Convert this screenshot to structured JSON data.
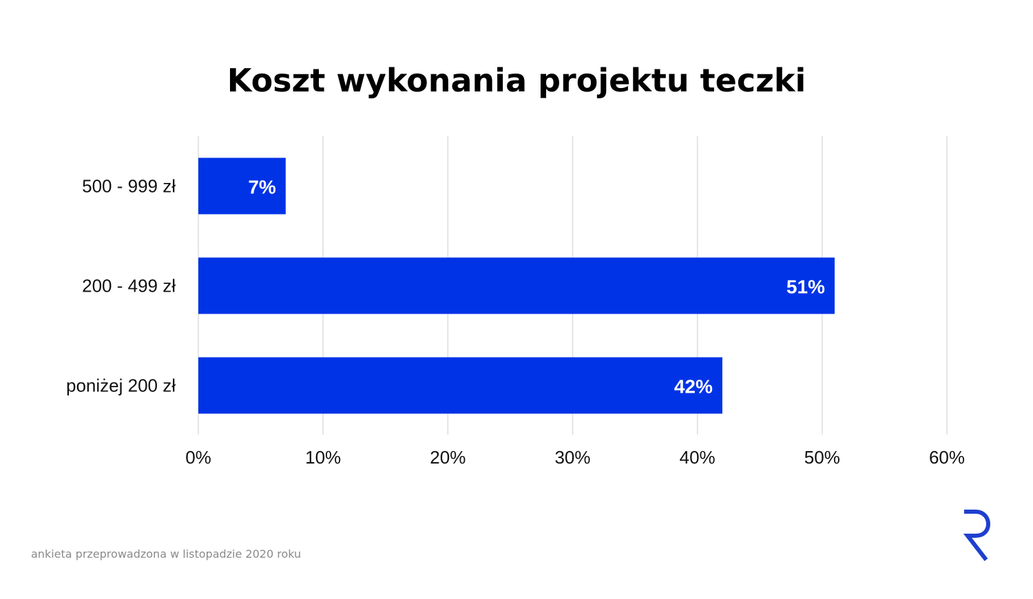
{
  "title": "Koszt wykonania projektu teczki",
  "footer": "ankieta przeprowadzona w listopadzie 2020 roku",
  "colors": {
    "bar": "#0033e6",
    "grid": "#dddddd",
    "logo": "#1f3fcf"
  },
  "logo_icon": "r-logo-icon",
  "chart_data": {
    "type": "bar",
    "orientation": "horizontal",
    "title": "Koszt wykonania projektu teczki",
    "xlabel": "",
    "ylabel": "",
    "categories": [
      "500 - 999 zł",
      "200 - 499 zł",
      "poniżej 200 zł"
    ],
    "values": [
      7,
      51,
      42
    ],
    "value_labels": [
      "7%",
      "51%",
      "42%"
    ],
    "xlim": [
      0,
      60
    ],
    "x_ticks": [
      0,
      10,
      20,
      30,
      40,
      50,
      60
    ],
    "x_tick_labels": [
      "0%",
      "10%",
      "20%",
      "30%",
      "40%",
      "50%",
      "60%"
    ],
    "grid": true,
    "legend": "none"
  }
}
